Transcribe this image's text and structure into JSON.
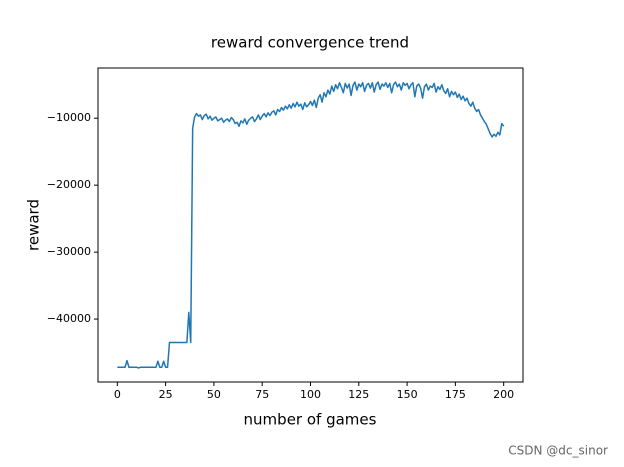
{
  "chart_data": {
    "type": "line",
    "title": "reward convergence trend",
    "x_label": "number of games",
    "y_label": "reward",
    "watermark": "CSDN @dc_sinor",
    "color": "#1f77b4",
    "x": [
      0,
      1,
      2,
      3,
      4,
      5,
      6,
      7,
      8,
      9,
      10,
      11,
      12,
      13,
      14,
      15,
      16,
      17,
      18,
      19,
      20,
      21,
      22,
      23,
      24,
      25,
      26,
      27,
      28,
      29,
      30,
      31,
      32,
      33,
      34,
      35,
      36,
      37,
      38,
      39,
      40,
      41,
      42,
      43,
      44,
      45,
      46,
      47,
      48,
      49,
      50,
      51,
      52,
      53,
      54,
      55,
      56,
      57,
      58,
      59,
      60,
      61,
      62,
      63,
      64,
      65,
      66,
      67,
      68,
      69,
      70,
      71,
      72,
      73,
      74,
      75,
      76,
      77,
      78,
      79,
      80,
      81,
      82,
      83,
      84,
      85,
      86,
      87,
      88,
      89,
      90,
      91,
      92,
      93,
      94,
      95,
      96,
      97,
      98,
      99,
      100,
      101,
      102,
      103,
      104,
      105,
      106,
      107,
      108,
      109,
      110,
      111,
      112,
      113,
      114,
      115,
      116,
      117,
      118,
      119,
      120,
      121,
      122,
      123,
      124,
      125,
      126,
      127,
      128,
      129,
      130,
      131,
      132,
      133,
      134,
      135,
      136,
      137,
      138,
      139,
      140,
      141,
      142,
      143,
      144,
      145,
      146,
      147,
      148,
      149,
      150,
      151,
      152,
      153,
      154,
      155,
      156,
      157,
      158,
      159,
      160,
      161,
      162,
      163,
      164,
      165,
      166,
      167,
      168,
      169,
      170,
      171,
      172,
      173,
      174,
      175,
      176,
      177,
      178,
      179,
      180,
      181,
      182,
      183,
      184,
      185,
      186,
      187,
      188,
      189,
      190,
      191,
      192,
      193,
      194,
      195,
      196,
      197,
      198,
      199,
      200
    ],
    "values": [
      -47200,
      -47200,
      -47200,
      -47200,
      -47200,
      -46200,
      -47200,
      -47200,
      -47200,
      -47200,
      -47200,
      -47300,
      -47200,
      -47200,
      -47200,
      -47200,
      -47200,
      -47200,
      -47200,
      -47200,
      -47200,
      -46300,
      -47200,
      -47200,
      -46300,
      -47200,
      -47200,
      -43500,
      -43500,
      -43500,
      -43500,
      -43500,
      -43500,
      -43500,
      -43500,
      -43500,
      -43500,
      -39000,
      -43500,
      -11500,
      -9800,
      -9300,
      -9700,
      -9500,
      -10200,
      -9600,
      -9400,
      -10100,
      -9700,
      -10300,
      -10000,
      -9800,
      -10400,
      -10200,
      -10000,
      -10600,
      -10300,
      -10100,
      -10500,
      -9900,
      -10200,
      -10800,
      -10600,
      -11200,
      -10400,
      -10700,
      -10100,
      -10900,
      -10300,
      -10000,
      -9800,
      -10500,
      -10100,
      -9500,
      -10200,
      -9700,
      -9300,
      -9800,
      -9200,
      -9600,
      -9100,
      -8900,
      -9500,
      -8700,
      -9000,
      -8400,
      -8800,
      -8200,
      -8600,
      -8000,
      -8500,
      -7800,
      -8300,
      -7600,
      -8200,
      -7900,
      -8700,
      -7700,
      -8300,
      -8000,
      -7500,
      -8100,
      -7300,
      -8400,
      -7000,
      -6500,
      -7600,
      -6200,
      -6800,
      -5800,
      -6400,
      -5200,
      -6000,
      -5000,
      -5600,
      -4700,
      -5400,
      -6200,
      -4800,
      -5500,
      -4900,
      -6600,
      -5100,
      -4600,
      -5800,
      -4900,
      -5300,
      -4700,
      -6000,
      -5100,
      -4800,
      -5500,
      -4700,
      -6100,
      -5000,
      -4600,
      -5700,
      -4900,
      -5200,
      -4700,
      -5400,
      -4800,
      -6200,
      -5000,
      -4600,
      -5300,
      -4900,
      -5800,
      -4700,
      -5100,
      -4800,
      -5600,
      -5000,
      -4700,
      -6800,
      -5200,
      -4900,
      -5500,
      -7000,
      -5300,
      -4900,
      -5800,
      -5200,
      -5400,
      -4800,
      -6100,
      -5300,
      -5700,
      -5000,
      -5900,
      -6300,
      -5600,
      -6800,
      -6000,
      -6500,
      -6100,
      -6900,
      -6400,
      -7200,
      -6700,
      -7400,
      -7000,
      -7800,
      -8200,
      -7600,
      -8500,
      -9000,
      -8700,
      -9500,
      -10000,
      -10500,
      -10900,
      -11600,
      -12300,
      -12800,
      -12400,
      -12700,
      -12100,
      -12500,
      -10800,
      -11200
    ],
    "xlim": [
      -10,
      210
    ],
    "xticks": [
      0,
      25,
      50,
      75,
      100,
      125,
      150,
      175,
      200
    ],
    "ylim": [
      -49400,
      -2500
    ],
    "yticks": [
      {
        "value": -40000,
        "label": "−40000"
      },
      {
        "value": -30000,
        "label": "−30000"
      },
      {
        "value": -20000,
        "label": "−20000"
      },
      {
        "value": -10000,
        "label": "−10000"
      }
    ]
  }
}
